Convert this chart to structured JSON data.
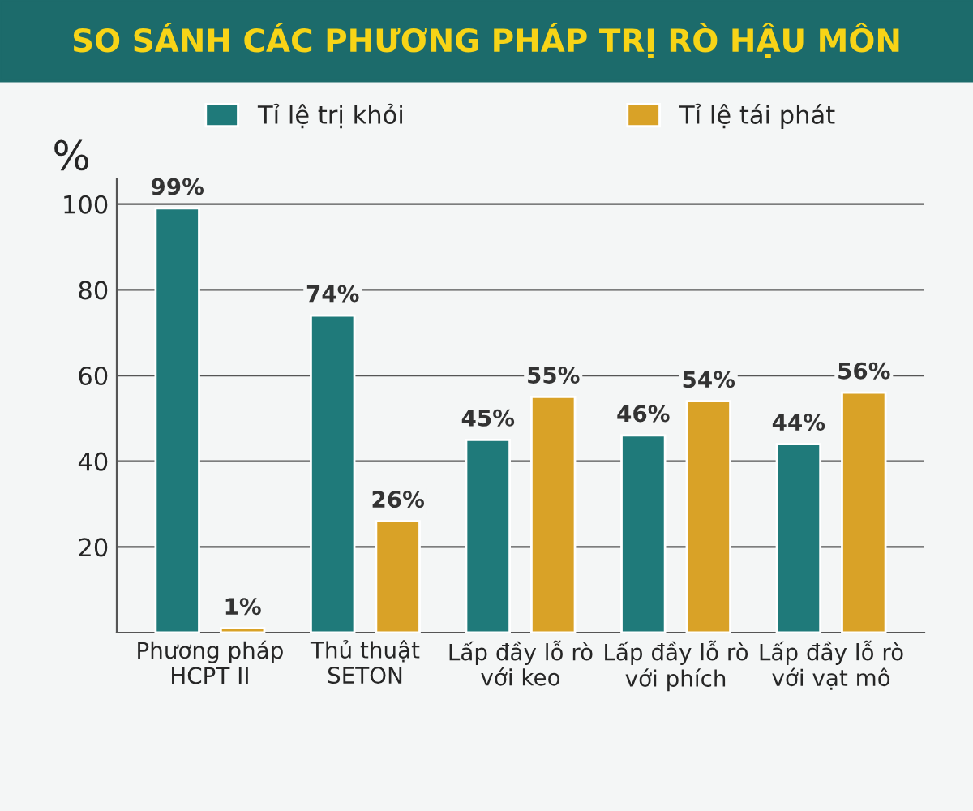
{
  "chart_data": {
    "type": "bar",
    "title": "SO SÁNH CÁC PHƯƠNG PHÁP TRỊ RÒ HẬU MÔN",
    "ylabel": "%",
    "categories": [
      "Phương pháp\nHCPT II",
      "Thủ thuật\nSETON",
      "Lấp đầy lỗ rò\nvới keo",
      "Lấp đầy lỗ rò\nvới phích",
      "Lấp đầy lỗ rò\nvới vạt mô"
    ],
    "series": [
      {
        "name": "Tỉ lệ trị khỏi",
        "color": "#1f7a7a",
        "values": [
          99,
          74,
          45,
          46,
          44
        ],
        "value_labels": [
          "99%",
          "74%",
          "45%",
          "46%",
          "44%"
        ]
      },
      {
        "name": "Tỉ lệ tái phát",
        "color": "#d9a227",
        "values": [
          1,
          26,
          55,
          54,
          56
        ],
        "value_labels": [
          "1%",
          "26%",
          "55%",
          "54%",
          "56%"
        ]
      }
    ],
    "ylim": [
      0,
      106
    ],
    "yticks": [
      20,
      40,
      60,
      80,
      100
    ],
    "grid": "y",
    "legend": "top"
  }
}
